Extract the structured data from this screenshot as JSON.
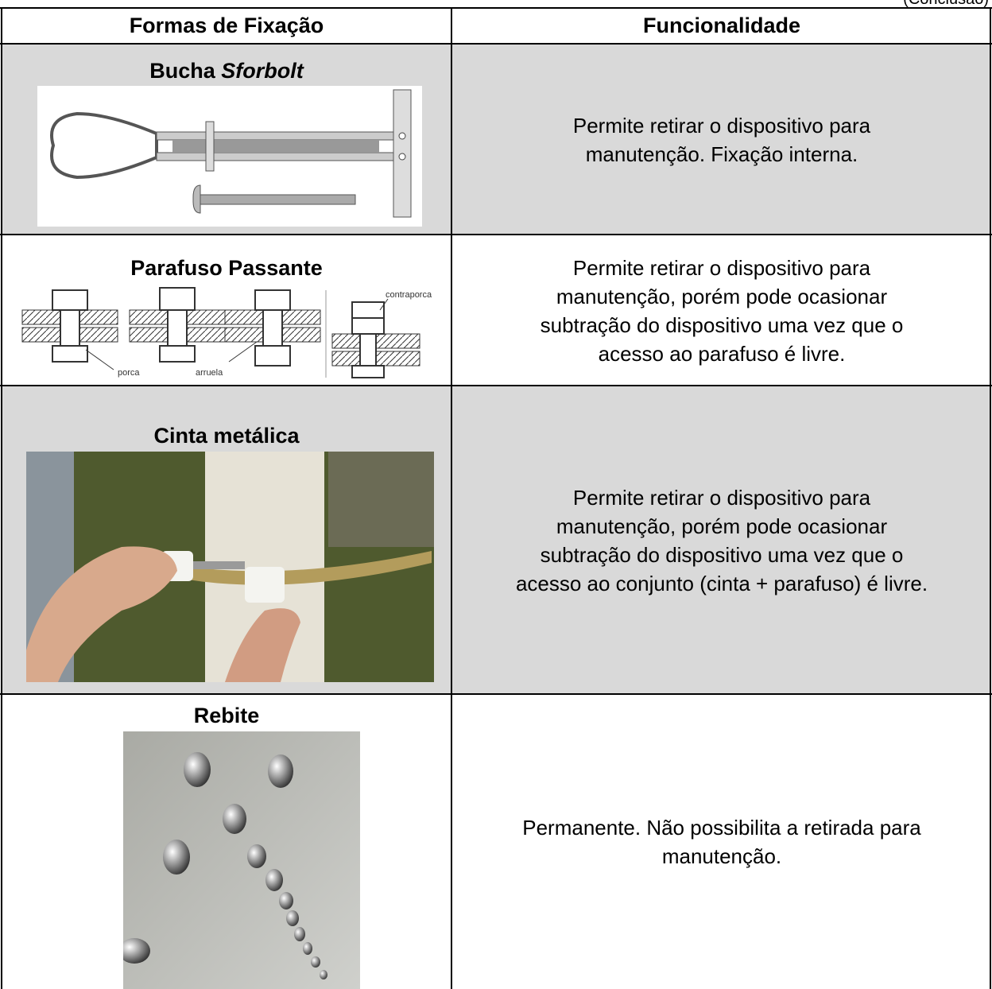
{
  "note": "(Conclusão)",
  "table": {
    "headers": [
      "Formas de Fixação",
      "Funcionalidade"
    ],
    "rows": [
      {
        "title": "Bucha",
        "title_italic": "Sforbolt",
        "description": [
          "Permite retirar o dispositivo para",
          "manutenção. Fixação interna."
        ]
      },
      {
        "title": "Parafuso Passante",
        "figure_labels": [
          "contraporca",
          "porca",
          "arruela"
        ],
        "description": [
          "Permite retirar o dispositivo para",
          "manutenção, porém pode ocasionar",
          "subtração do dispositivo uma vez que o",
          "acesso ao parafuso é livre."
        ]
      },
      {
        "title": "Cinta metálica",
        "description": [
          "Permite retirar o dispositivo para",
          "manutenção, porém pode ocasionar",
          "subtração do dispositivo uma vez que o",
          "acesso ao conjunto (cinta + parafuso) é livre."
        ]
      },
      {
        "title": "Rebite",
        "description": [
          "Permanente. Não possibilita a retirada para",
          "manutenção."
        ]
      }
    ]
  }
}
